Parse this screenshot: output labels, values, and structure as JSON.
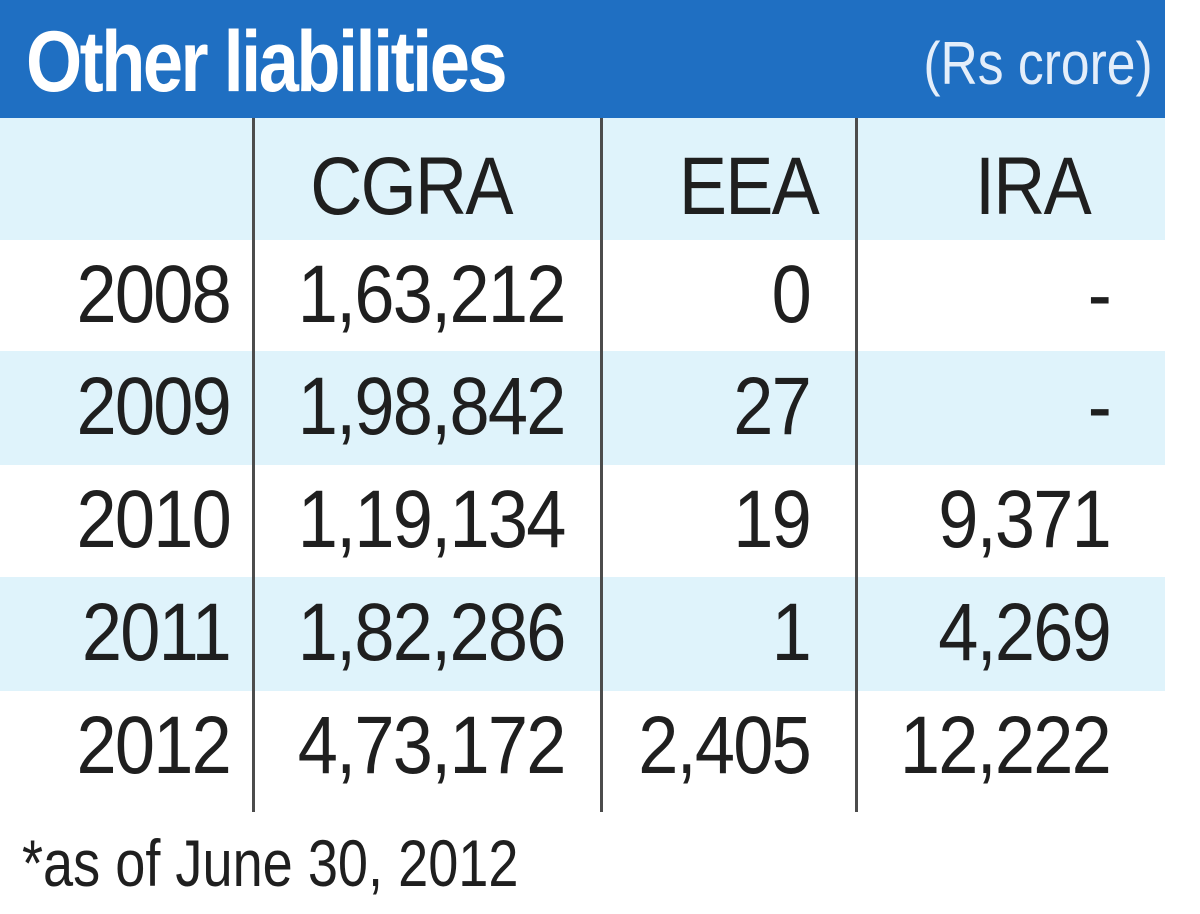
{
  "title": "Other liabilities",
  "unit": "(Rs crore)",
  "footnote": "*as of June 30, 2012",
  "chart_data": {
    "type": "table",
    "columns": [
      "",
      "CGRA",
      "EEA",
      "IRA"
    ],
    "rows": [
      [
        "2008",
        "1,63,212",
        "0",
        "-"
      ],
      [
        "2009",
        "1,98,842",
        "27",
        "-"
      ],
      [
        "2010",
        "1,19,134",
        "19",
        "9,371"
      ],
      [
        "2011",
        "1,82,286",
        "1",
        "4,269"
      ],
      [
        "2012",
        "4,73,172",
        "2,405",
        "12,222"
      ]
    ]
  },
  "colors": {
    "header_bg": "#1f6fc2",
    "band_bg": "#dff3fb",
    "text": "#1f1f1f",
    "title_text": "#ffffff"
  }
}
